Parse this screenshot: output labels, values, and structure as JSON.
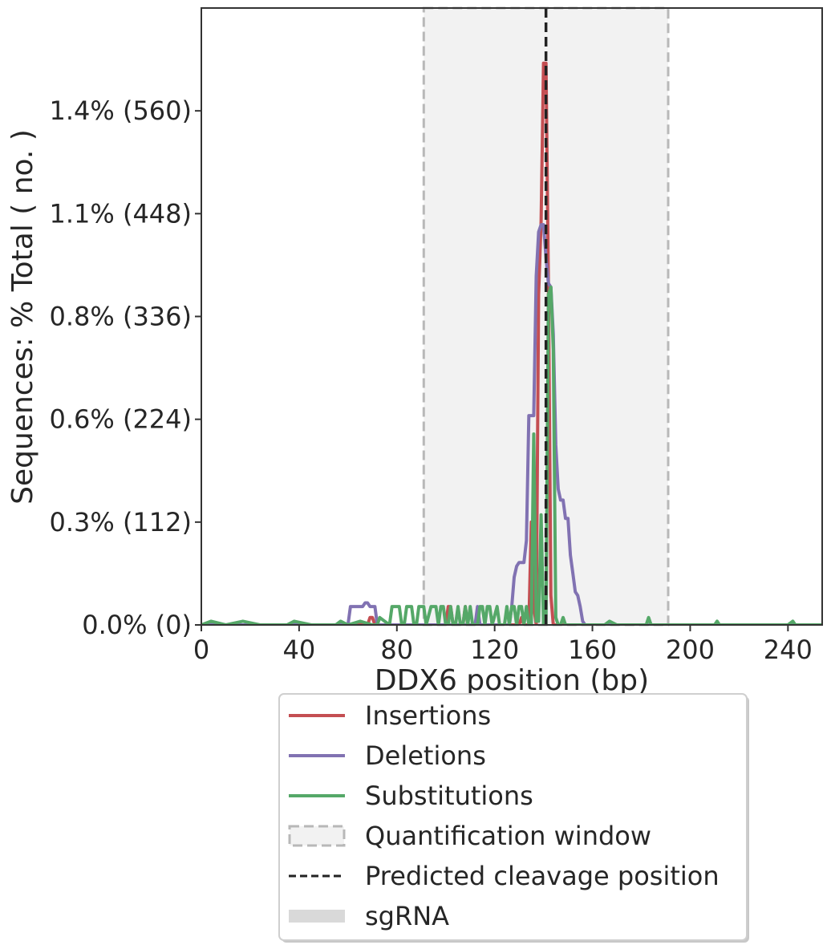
{
  "chart_data": {
    "type": "line",
    "title": "",
    "xlabel": "DDX6 position (bp)",
    "ylabel": "Sequences: % Total ( no. )",
    "xlim": [
      0,
      254
    ],
    "ylim": [
      0,
      1.68
    ],
    "x_ticks": [
      0,
      40,
      80,
      120,
      160,
      200,
      240
    ],
    "y_ticks": [
      0.0,
      0.28,
      0.56,
      0.84,
      1.12,
      1.4
    ],
    "y_tick_labels": [
      "0.0% (0)",
      "0.3% (112)",
      "0.6% (224)",
      "0.8% (336)",
      "1.1% (448)",
      "1.4% (560)"
    ],
    "grid": false,
    "quantification_window": [
      91,
      191
    ],
    "predicted_cleavage_position": 141,
    "series": [
      {
        "name": "Insertions",
        "color": "#c44e52",
        "points": [
          [
            0,
            0
          ],
          [
            68,
            0
          ],
          [
            69,
            0.02
          ],
          [
            70,
            0.02
          ],
          [
            71,
            0
          ],
          [
            100,
            0
          ],
          [
            101,
            0.05
          ],
          [
            102,
            0.05
          ],
          [
            103,
            0
          ],
          [
            107,
            0
          ],
          [
            108,
            0.05
          ],
          [
            109,
            0
          ],
          [
            130,
            0
          ],
          [
            131,
            0.02
          ],
          [
            132,
            0
          ],
          [
            134,
            0
          ],
          [
            135,
            0.28
          ],
          [
            136,
            0.05
          ],
          [
            137,
            0
          ],
          [
            138,
            0.9
          ],
          [
            139,
            1.1
          ],
          [
            140,
            1.53
          ],
          [
            141,
            1.53
          ],
          [
            142,
            0.93
          ],
          [
            143,
            0.08
          ],
          [
            144,
            0
          ],
          [
            254,
            0
          ]
        ]
      },
      {
        "name": "Deletions",
        "color": "#8172b2",
        "points": [
          [
            0,
            0
          ],
          [
            60,
            0
          ],
          [
            61,
            0.05
          ],
          [
            66,
            0.05
          ],
          [
            67,
            0.06
          ],
          [
            68,
            0.06
          ],
          [
            69,
            0.05
          ],
          [
            71,
            0.05
          ],
          [
            72,
            0
          ],
          [
            112,
            0
          ],
          [
            113,
            0.05
          ],
          [
            114,
            0
          ],
          [
            126,
            0
          ],
          [
            127,
            0.05
          ],
          [
            128,
            0.13
          ],
          [
            129,
            0.16
          ],
          [
            130,
            0.17
          ],
          [
            131,
            0.17
          ],
          [
            132,
            0.17
          ],
          [
            133,
            0.23
          ],
          [
            134,
            0.57
          ],
          [
            135,
            0.57
          ],
          [
            136,
            0.57
          ],
          [
            137,
            0.95
          ],
          [
            138,
            1.07
          ],
          [
            139,
            1.09
          ],
          [
            140,
            1.09
          ],
          [
            141,
            1.0
          ],
          [
            142,
            0.93
          ],
          [
            143,
            0.92
          ],
          [
            144,
            0.79
          ],
          [
            145,
            0.49
          ],
          [
            146,
            0.37
          ],
          [
            147,
            0.34
          ],
          [
            148,
            0.34
          ],
          [
            149,
            0.29
          ],
          [
            150,
            0.29
          ],
          [
            151,
            0.19
          ],
          [
            152,
            0.14
          ],
          [
            153,
            0.09
          ],
          [
            154,
            0.08
          ],
          [
            155,
            0.05
          ],
          [
            156,
            0.01
          ],
          [
            157,
            0
          ],
          [
            254,
            0
          ]
        ]
      },
      {
        "name": "Substitutions",
        "color": "#55a868",
        "points": [
          [
            0,
            0
          ],
          [
            4,
            0.01
          ],
          [
            10,
            0
          ],
          [
            17,
            0.01
          ],
          [
            24,
            0
          ],
          [
            35,
            0
          ],
          [
            38,
            0.01
          ],
          [
            45,
            0
          ],
          [
            55,
            0
          ],
          [
            57,
            0.01
          ],
          [
            60,
            0
          ],
          [
            65,
            0.01
          ],
          [
            70,
            0
          ],
          [
            72,
            0
          ],
          [
            73,
            0.02
          ],
          [
            77,
            0
          ],
          [
            78,
            0.05
          ],
          [
            81,
            0.05
          ],
          [
            82,
            0
          ],
          [
            83,
            0
          ],
          [
            84,
            0.05
          ],
          [
            86,
            0.05
          ],
          [
            87,
            0
          ],
          [
            88,
            0
          ],
          [
            89,
            0.05
          ],
          [
            91,
            0.05
          ],
          [
            92,
            0
          ],
          [
            94,
            0.05
          ],
          [
            96,
            0.05
          ],
          [
            97,
            0
          ],
          [
            98,
            0.05
          ],
          [
            99,
            0.05
          ],
          [
            100,
            0
          ],
          [
            101,
            0
          ],
          [
            102,
            0.05
          ],
          [
            103,
            0
          ],
          [
            104,
            0
          ],
          [
            105,
            0.05
          ],
          [
            106,
            0
          ],
          [
            107,
            0
          ],
          [
            108,
            0.05
          ],
          [
            109,
            0
          ],
          [
            110,
            0.05
          ],
          [
            111,
            0
          ],
          [
            113,
            0
          ],
          [
            114,
            0.05
          ],
          [
            115,
            0.05
          ],
          [
            116,
            0
          ],
          [
            117,
            0.05
          ],
          [
            118,
            0.05
          ],
          [
            119,
            0
          ],
          [
            121,
            0.05
          ],
          [
            122,
            0
          ],
          [
            124,
            0
          ],
          [
            125,
            0.05
          ],
          [
            126,
            0
          ],
          [
            127,
            0.05
          ],
          [
            128,
            0.05
          ],
          [
            129,
            0
          ],
          [
            130,
            0.05
          ],
          [
            131,
            0.05
          ],
          [
            132,
            0
          ],
          [
            133,
            0.05
          ],
          [
            134,
            0
          ],
          [
            135,
            0
          ],
          [
            136,
            0.52
          ],
          [
            137,
            0.01
          ],
          [
            138,
            0.01
          ],
          [
            139,
            0.3
          ],
          [
            140,
            0
          ],
          [
            141,
            0
          ],
          [
            142,
            0.9
          ],
          [
            143,
            0.92
          ],
          [
            144,
            0.75
          ],
          [
            145,
            0.02
          ],
          [
            146,
            0
          ],
          [
            147,
            0
          ],
          [
            148,
            0.02
          ],
          [
            149,
            0
          ],
          [
            165,
            0
          ],
          [
            167,
            0.01
          ],
          [
            170,
            0
          ],
          [
            182,
            0
          ],
          [
            183,
            0.02
          ],
          [
            184,
            0
          ],
          [
            210,
            0
          ],
          [
            211,
            0.01
          ],
          [
            212,
            0
          ],
          [
            240,
            0
          ],
          [
            242,
            0.01
          ],
          [
            243,
            0
          ],
          [
            254,
            0
          ]
        ]
      }
    ],
    "legend": {
      "placement": "below",
      "entries": [
        "Insertions",
        "Deletions",
        "Substitutions",
        "Quantification window",
        "Predicted cleavage position",
        "sgRNA"
      ]
    }
  }
}
